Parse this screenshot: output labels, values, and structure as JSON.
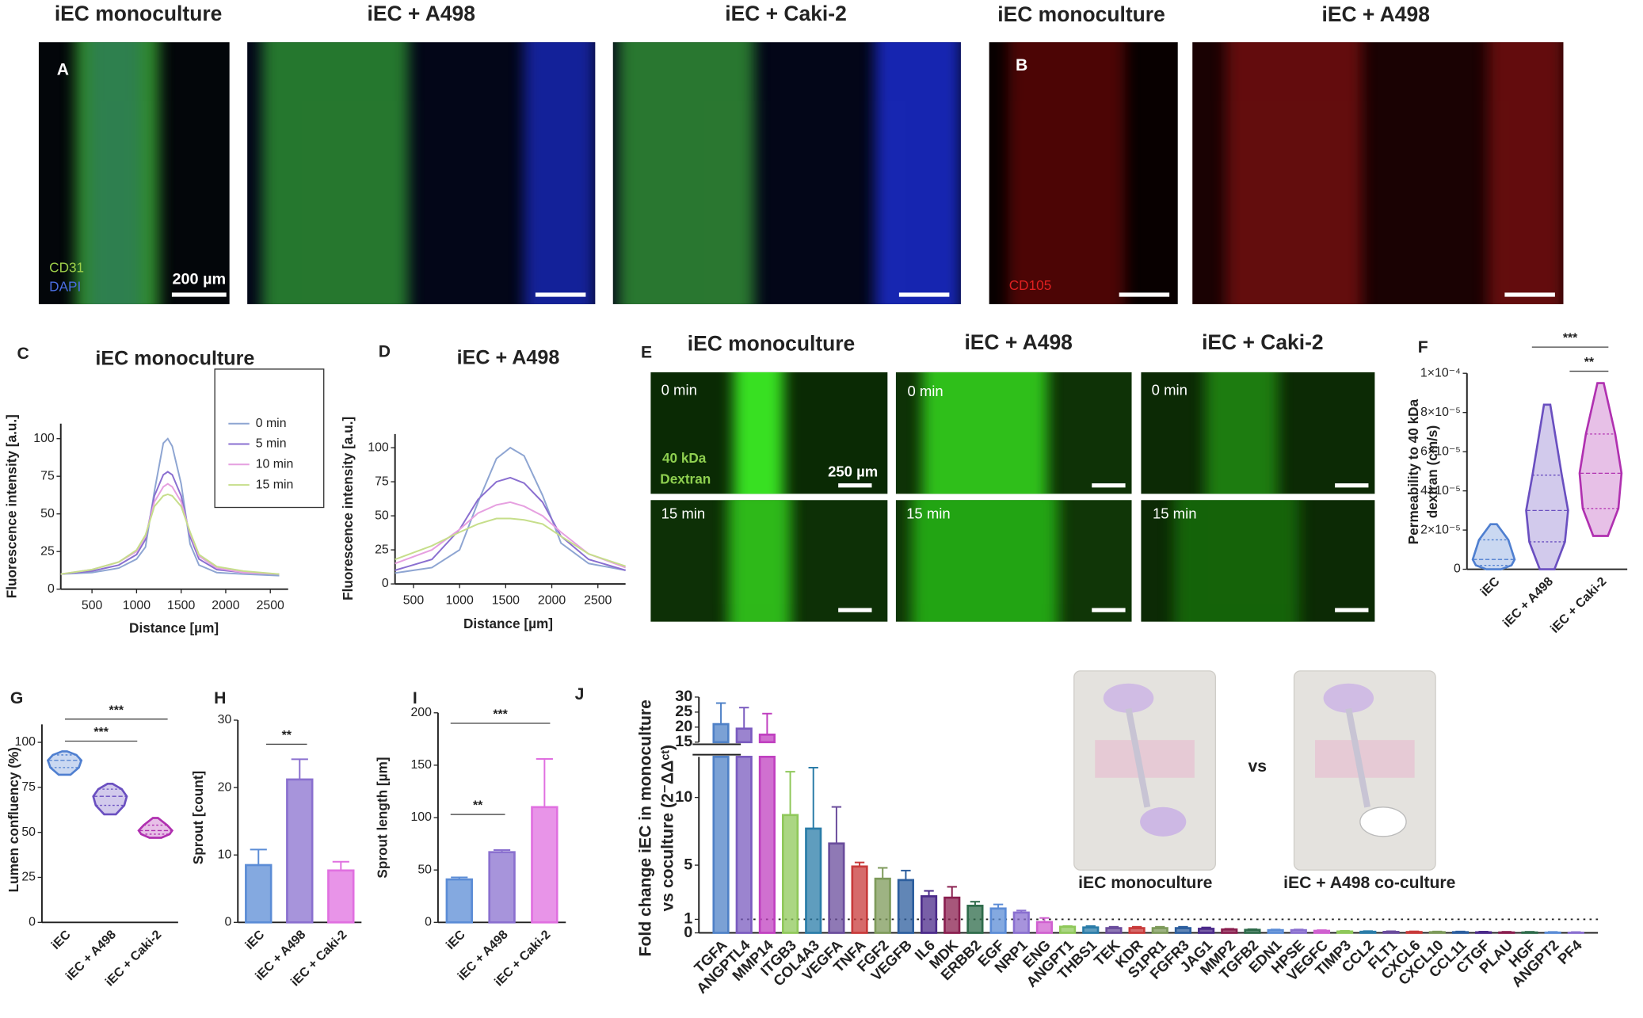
{
  "figure": {
    "top_headings": [
      "iEC monoculture",
      "iEC + A498",
      "iEC + Caki-2",
      "iEC monoculture",
      "iEC + A498"
    ],
    "panel_a": {
      "letter": "A",
      "stain_1": "CD31",
      "stain_2": "DAPI",
      "scale_bar": "200 µm"
    },
    "panel_b": {
      "letter": "B",
      "stain": "CD105"
    },
    "panel_e": {
      "letter": "E",
      "headings": [
        "iEC monoculture",
        "iEC + A498",
        "iEC + Caki-2"
      ],
      "time_labels": [
        "0 min",
        "15 min"
      ],
      "probe": [
        "40 kDa",
        "Dextran"
      ],
      "scale_bar": "250 µm"
    },
    "panel_j_schematic": {
      "vs": "vs",
      "labels": [
        "iEC monoculture",
        "iEC + A498 co-culture"
      ]
    }
  },
  "chart_data": [
    {
      "panel": "C",
      "type": "line",
      "title": "iEC monoculture",
      "x_label": "Distance [µm]",
      "y_label": "Fluorescence intensity [a.u.]",
      "x": [
        150,
        500,
        800,
        1000,
        1100,
        1200,
        1300,
        1350,
        1400,
        1500,
        1600,
        1700,
        1900,
        2200,
        2600
      ],
      "xlim": [
        150,
        2700
      ],
      "xticks": [
        500,
        1000,
        1500,
        2000,
        2500
      ],
      "ylim": [
        0,
        110
      ],
      "yticks": [
        0,
        25,
        50,
        75,
        100
      ],
      "legend": "upper right",
      "series": [
        {
          "name": "0 min",
          "color": "#8ea5d2",
          "values": [
            10,
            11,
            14,
            20,
            28,
            65,
            97,
            100,
            95,
            70,
            30,
            16,
            11,
            10,
            9
          ]
        },
        {
          "name": "5 min",
          "color": "#8a6fd0",
          "values": [
            10,
            12,
            16,
            23,
            33,
            62,
            76,
            78,
            76,
            62,
            35,
            20,
            13,
            11,
            10
          ]
        },
        {
          "name": "10 min",
          "color": "#e6a0e0",
          "values": [
            10,
            13,
            18,
            25,
            35,
            58,
            68,
            70,
            68,
            58,
            37,
            22,
            14,
            11,
            10
          ]
        },
        {
          "name": "15 min",
          "color": "#c6de8a",
          "values": [
            10,
            13,
            18,
            26,
            36,
            55,
            62,
            63,
            62,
            55,
            38,
            23,
            15,
            12,
            10
          ]
        }
      ]
    },
    {
      "panel": "D",
      "type": "line",
      "title": "iEC + A498",
      "x_label": "Distance [µm]",
      "y_label": "Fluorescence intensity [a.u.]",
      "x": [
        300,
        700,
        1000,
        1200,
        1400,
        1550,
        1700,
        1900,
        2100,
        2400,
        2800
      ],
      "xlim": [
        300,
        2800
      ],
      "xticks": [
        500,
        1000,
        1500,
        2000,
        2500
      ],
      "ylim": [
        0,
        110
      ],
      "yticks": [
        0,
        25,
        50,
        75,
        100
      ],
      "series": [
        {
          "color": "#8ea5d2",
          "values": [
            8,
            12,
            25,
            60,
            92,
            100,
            94,
            65,
            30,
            15,
            10
          ]
        },
        {
          "color": "#8a6fd0",
          "values": [
            10,
            18,
            40,
            62,
            75,
            78,
            74,
            60,
            35,
            18,
            10
          ]
        },
        {
          "color": "#e6a0e0",
          "values": [
            15,
            25,
            40,
            52,
            58,
            60,
            57,
            50,
            38,
            22,
            12
          ]
        },
        {
          "color": "#c6de8a",
          "values": [
            18,
            28,
            38,
            44,
            48,
            48,
            47,
            44,
            35,
            22,
            13
          ]
        }
      ]
    },
    {
      "panel": "F",
      "type": "violin",
      "y_label": [
        "Permeability to 40 kDa",
        "dextran (cm/s)"
      ],
      "categories": [
        "iEC",
        "iEC + A498",
        "iEC + Caki-2"
      ],
      "colors": [
        "#4f7fd0",
        "#6a4fc0",
        "#b030b0"
      ],
      "stats": [
        {
          "min": 0,
          "q1": 2e-06,
          "median": 5e-06,
          "q3": 1.5e-05,
          "max": 2.3e-05
        },
        {
          "min": 0,
          "q1": 1.4e-05,
          "median": 3e-05,
          "q3": 4.8e-05,
          "max": 8.4e-05
        },
        {
          "min": 1.7e-05,
          "q1": 3.1e-05,
          "median": 4.9e-05,
          "q3": 6.9e-05,
          "max": 9.5e-05
        }
      ],
      "ylim": [
        0,
        0.0001
      ],
      "yticks": [
        0,
        {
          "value": 2e-05,
          "label": "2×10⁻⁵"
        },
        {
          "value": 4e-05,
          "label": "4×10⁻⁵"
        },
        {
          "value": 6e-05,
          "label": "6×10⁻⁵"
        },
        {
          "value": 8e-05,
          "label": "8×10⁻⁵"
        },
        {
          "value": 0.0001,
          "label": "1×10⁻⁴"
        }
      ],
      "annotations": [
        "***",
        "**"
      ]
    },
    {
      "panel": "G",
      "type": "violin",
      "y_label": "Lumen confluency (%)",
      "categories": [
        "iEC",
        "iEC + A498",
        "iEC + Caki-2"
      ],
      "colors": [
        "#4f7fd0",
        "#6a4fc0",
        "#b030b0"
      ],
      "stats": [
        {
          "min": 82,
          "q1": 86,
          "median": 90,
          "q3": 93,
          "max": 95
        },
        {
          "min": 60,
          "q1": 65,
          "median": 70,
          "q3": 74,
          "max": 77
        },
        {
          "min": 47,
          "q1": 49,
          "median": 51,
          "q3": 54,
          "max": 58
        }
      ],
      "ylim": [
        0,
        110
      ],
      "yticks": [
        0,
        25,
        50,
        75,
        100
      ],
      "annotations": [
        "***",
        "***"
      ]
    },
    {
      "panel": "H",
      "type": "bar",
      "y_label": "Sprout [count]",
      "categories": [
        "iEC",
        "iEC + A498",
        "iEC + Caki-2"
      ],
      "colors": [
        "#5b8cd6",
        "#8a70cf",
        "#e070e0"
      ],
      "values": [
        8.5,
        21.2,
        7.7
      ],
      "errors": [
        2.3,
        3,
        1.3
      ],
      "ylim": [
        0,
        30
      ],
      "yticks": [
        0,
        10,
        20,
        30
      ],
      "annotations": [
        "**"
      ]
    },
    {
      "panel": "I",
      "type": "bar",
      "y_label": "Sprout length [µm]",
      "categories": [
        "iEC",
        "iEC + A498",
        "iEC + Caki-2"
      ],
      "colors": [
        "#5b8cd6",
        "#8a70cf",
        "#e070e0"
      ],
      "values": [
        41,
        67,
        110
      ],
      "errors": [
        2,
        2,
        46
      ],
      "ylim": [
        0,
        200
      ],
      "yticks": [
        0,
        50,
        100,
        150,
        200
      ],
      "annotations": [
        "***",
        "**"
      ]
    },
    {
      "panel": "J",
      "type": "bar",
      "y_label": [
        "Fold change iEC in monoculture",
        "vs coculture (2⁻ΔΔᶜᵗ)"
      ],
      "categories": [
        "TGFA",
        "ANGPTL4",
        "MMP14",
        "ITGB3",
        "COL4A3",
        "VEGFA",
        "TNFA",
        "FGF2",
        "VEGFB",
        "IL6",
        "MDK",
        "ERBB2",
        "EGF",
        "NRP1",
        "ENG",
        "ANGPT1",
        "THBS1",
        "TEK",
        "KDR",
        "S1PR1",
        "FGFR3",
        "JAG1",
        "MMP2",
        "TGFB2",
        "EDN1",
        "HPSE",
        "VEGFC",
        "TIMP3",
        "CCL2",
        "FLT1",
        "CXCL6",
        "CXCL10",
        "CCL11",
        "CTGF",
        "PLAU",
        "HGF",
        "ANGPT2",
        "PF4"
      ],
      "colors": [
        "#4f81c7",
        "#7a5bbf",
        "#c040c0",
        "#8fc85a",
        "#2a7ca8",
        "#6a4c9c",
        "#c83a3a",
        "#7d9a5a",
        "#2c5e9e",
        "#4b2a8a",
        "#8a1f4f",
        "#2e6b4a",
        "#5b8cd6",
        "#8a6fd0",
        "#d060d0",
        "#8fc85a",
        "#2a7ca8",
        "#6a4c9c",
        "#c83a3a",
        "#7d9a5a",
        "#2c5e9e",
        "#4b2a8a",
        "#8a1f4f",
        "#2e6b4a",
        "#5b8cd6",
        "#8a6fd0",
        "#d060d0",
        "#8fc85a",
        "#2a7ca8",
        "#6a4c9c",
        "#c83a3a",
        "#7d9a5a",
        "#2c5e9e",
        "#4b2a8a",
        "#8a1f4f",
        "#2e6b4a",
        "#5b8cd6",
        "#8a6fd0"
      ],
      "values": [
        21,
        19.5,
        17.5,
        8.7,
        7.7,
        6.6,
        4.9,
        4.0,
        3.9,
        2.7,
        2.6,
        2.0,
        1.8,
        1.5,
        0.8,
        0.45,
        0.4,
        0.35,
        0.35,
        0.35,
        0.35,
        0.3,
        0.25,
        0.22,
        0.2,
        0.2,
        0.15,
        0.1,
        0.08,
        0.07,
        0.06,
        0.05,
        0.05,
        0.04,
        0.03,
        0.03,
        0.02,
        0.01
      ],
      "errors": [
        7,
        7,
        7,
        3.2,
        4.5,
        2.7,
        0.3,
        0.8,
        0.7,
        0.4,
        0.8,
        0.3,
        0.3,
        0.15,
        0.3,
        0.05,
        0.1,
        0.1,
        0.1,
        0.1,
        0.1,
        0.1,
        0.05,
        0.05,
        0.05,
        0.05,
        0.05,
        0.05,
        0.05,
        0.05,
        0.05,
        0.05,
        0.05,
        0.05,
        0.05,
        0.05,
        0.05,
        0.05
      ],
      "ylim": [
        0,
        30
      ],
      "y_break": [
        13,
        15
      ],
      "yticks": [
        0,
        1,
        5,
        10,
        15,
        20,
        25,
        30
      ],
      "reference_line": 1
    }
  ]
}
